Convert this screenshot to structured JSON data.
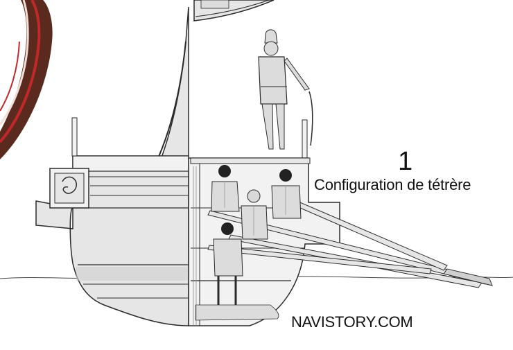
{
  "figure": {
    "number": "1",
    "caption": "Configuration de tétrère",
    "watermark": "NAVISTORY.COM"
  },
  "colors": {
    "line": "#2a2a2a",
    "hull_fill": "#e6e6e6",
    "hull_shade": "#cfcfcf",
    "deck_fill": "#f2f2f2",
    "ship_brown": "#5a2a1e",
    "ship_red": "#c0282a",
    "figure_fill": "#dcdcdc",
    "hair": "#222222"
  }
}
